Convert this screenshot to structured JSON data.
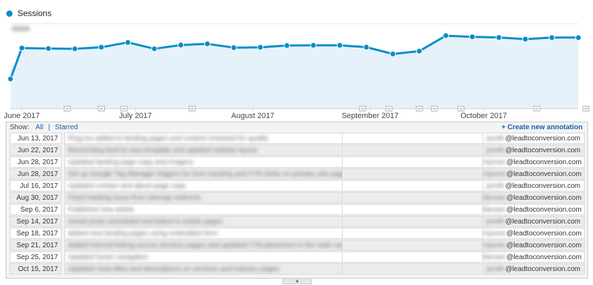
{
  "legend": {
    "label": "Sessions",
    "color": "#058dc7"
  },
  "chart_data": {
    "type": "area",
    "title": "",
    "series": [
      {
        "name": "Sessions",
        "color": "#058dc7",
        "x": [
          "2017-05-29",
          "2017-06-01",
          "2017-06-08",
          "2017-06-15",
          "2017-06-22",
          "2017-06-29",
          "2017-07-06",
          "2017-07-13",
          "2017-07-20",
          "2017-07-27",
          "2017-08-03",
          "2017-08-10",
          "2017-08-17",
          "2017-08-24",
          "2017-08-31",
          "2017-09-07",
          "2017-09-14",
          "2017-09-21",
          "2017-09-28",
          "2017-10-05",
          "2017-10-12",
          "2017-10-19",
          "2017-10-26"
        ],
        "values": [
          347,
          713,
          707,
          703,
          722,
          779,
          704,
          748,
          762,
          717,
          721,
          743,
          745,
          745,
          723,
          643,
          676,
          859,
          845,
          838,
          818,
          836,
          836
        ]
      }
    ],
    "x_tick_labels": [
      "June 2017",
      "July 2017",
      "August 2017",
      "September 2017",
      "October 2017"
    ],
    "x_tick_dates": [
      "2017-06-01",
      "2017-07-01",
      "2017-08-01",
      "2017-09-01",
      "2017-10-01"
    ],
    "y_tick_labels_obscured": true,
    "ylim": [
      0,
      1000
    ],
    "xlim": [
      "2017-05-29",
      "2017-10-26"
    ],
    "grid": "horizontal",
    "annotation_marker_dates": [
      "2017-06-13",
      "2017-06-22",
      "2017-06-28",
      "2017-07-16",
      "2017-08-30",
      "2017-09-06",
      "2017-09-14",
      "2017-09-18",
      "2017-09-25",
      "2017-10-15",
      "2017-10-28"
    ]
  },
  "annotations_panel": {
    "show_label": "Show:",
    "filter_all": "All",
    "filter_separator": "|",
    "filter_starred": "Starred",
    "create_label": "+ Create new annotation",
    "rows": [
      {
        "date": "Jun 13, 2017",
        "text": "Plug-ins added to landing pages and content reviewed for quality",
        "user": "jsmith",
        "domain": "@leadtoconversion.com"
      },
      {
        "date": "Jun 22, 2017",
        "text": "Moved blog feed to new template and updated sidebar layout",
        "user": "jsmith",
        "domain": "@leadtoconversion.com"
      },
      {
        "date": "Jun 28, 2017",
        "text": "Updated landing page copy and imagery",
        "user": "mjones",
        "domain": "@leadtoconversion.com"
      },
      {
        "date": "Jun 28, 2017",
        "text": "Set up Google Tag Manager triggers for form tracking and CTA clicks on primary site pages",
        "user": "mjones",
        "domain": "@leadtoconversion.com"
      },
      {
        "date": "Jul 16, 2017",
        "text": "Updated contact and about page copy",
        "user": "jsmith",
        "domain": "@leadtoconversion.com"
      },
      {
        "date": "Aug 30, 2017",
        "text": "Fixed tracking issue from sitemap redirects",
        "user": "kbrown",
        "domain": "@leadtoconversion.com"
      },
      {
        "date": "Sep 6, 2017",
        "text": "Published new article",
        "user": "kbrown",
        "domain": "@leadtoconversion.com"
      },
      {
        "date": "Sep 14, 2017",
        "text": "Social posts scheduled and linked to article pages",
        "user": "jsmith",
        "domain": "@leadtoconversion.com"
      },
      {
        "date": "Sep 18, 2017",
        "text": "Added new landing pages using embedded form",
        "user": "mjones",
        "domain": "@leadtoconversion.com"
      },
      {
        "date": "Sep 21, 2017",
        "text": "Added internal linking across services pages and updated CTA placement in the main navigation",
        "user": "mjones",
        "domain": "@leadtoconversion.com"
      },
      {
        "date": "Sep 25, 2017",
        "text": "Updated footer navigation",
        "user": "kbrown",
        "domain": "@leadtoconversion.com"
      },
      {
        "date": "Oct 15, 2017",
        "text": "Updated meta titles and descriptions on services and industry pages",
        "user": "jsmith",
        "domain": "@leadtoconversion.com"
      }
    ]
  }
}
